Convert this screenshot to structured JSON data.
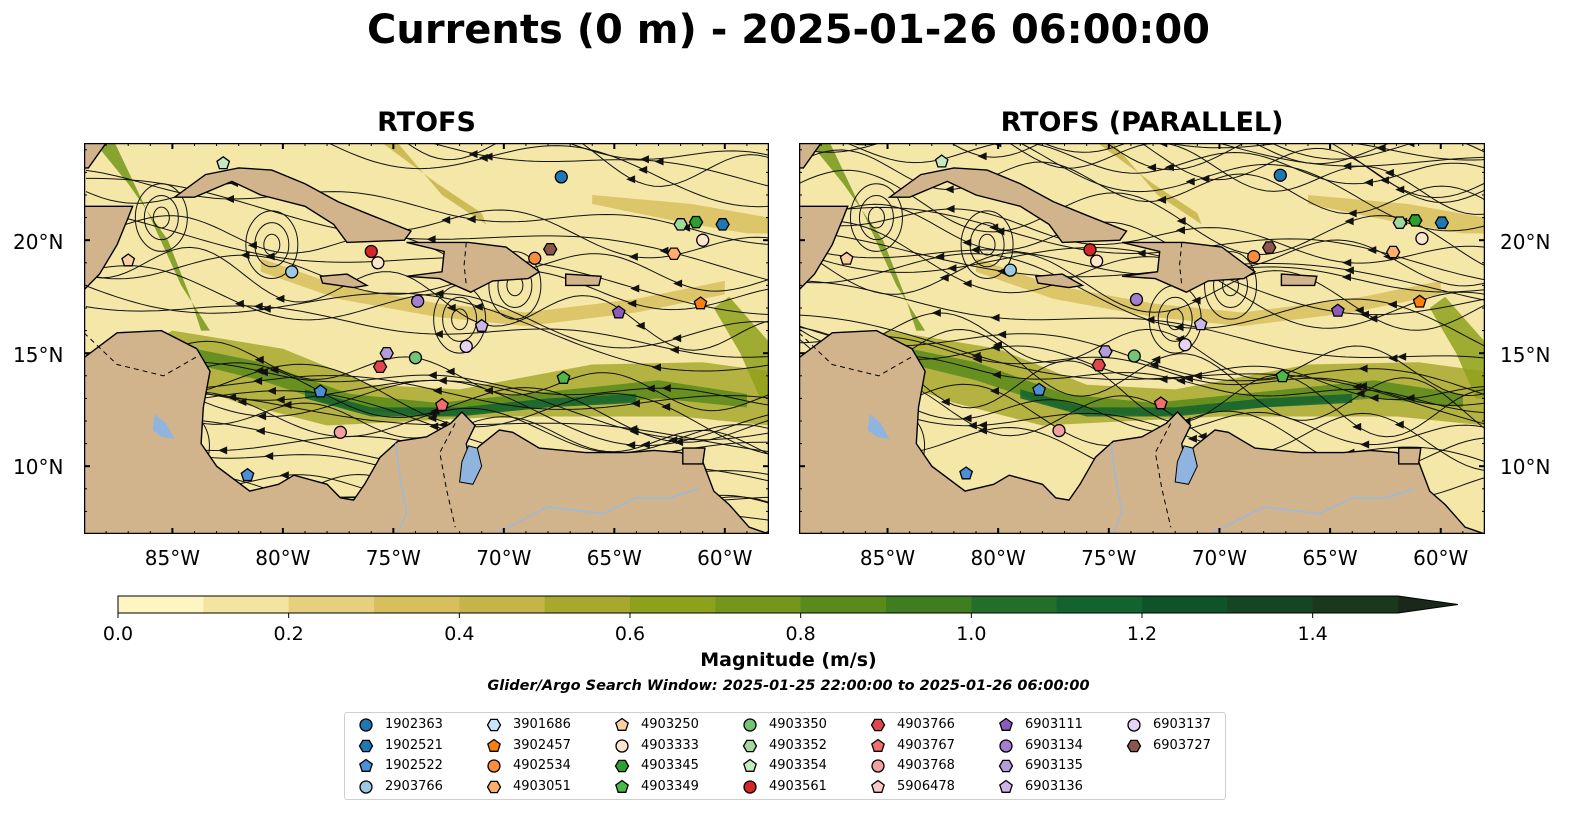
{
  "title": "Currents (0 m) - 2025-01-26 06:00:00",
  "panels": [
    {
      "title": "RTOFS"
    },
    {
      "title": "RTOFS (PARALLEL)"
    }
  ],
  "longitude_labels": [
    "85°W",
    "80°W",
    "75°W",
    "70°W",
    "65°W",
    "60°W"
  ],
  "latitude_labels": [
    "20°N",
    "15°N",
    "10°N"
  ],
  "map_extent": {
    "lon": [
      -89,
      -58
    ],
    "lat": [
      7,
      24.3
    ]
  },
  "colorbar": {
    "label": "Magnitude (m/s)",
    "ticks": [
      "0.0",
      "0.2",
      "0.4",
      "0.6",
      "0.8",
      "1.0",
      "1.2",
      "1.4"
    ],
    "range": [
      0,
      1.5
    ],
    "extend": "max",
    "colors": [
      "#fdf6c3",
      "#f3e4a2",
      "#e6d07e",
      "#d7bf5e",
      "#c5b447",
      "#a8a82e",
      "#8ea11c",
      "#74961a",
      "#5a8a1c",
      "#3e7d20",
      "#236f2a",
      "#12632d",
      "#0f5429",
      "#154523",
      "#19381c"
    ]
  },
  "search_window": "Glider/Argo Search Window: 2025-01-25 22:00:00 to 2025-01-26 06:00:00",
  "colors": {
    "land": "#d2b48c",
    "lake": "#8fb4e0",
    "river": "#9ab9dc",
    "ocean_low": "#f4e7a8"
  },
  "legend": [
    {
      "id": "1902363",
      "marker": "circle",
      "color": "#1f77b4"
    },
    {
      "id": "1902521",
      "marker": "hexagon",
      "color": "#1f77b4"
    },
    {
      "id": "1902522",
      "marker": "pentagon",
      "color": "#4a90d9"
    },
    {
      "id": "2903766",
      "marker": "circle",
      "color": "#9ecae1"
    },
    {
      "id": "3901686",
      "marker": "hexagon",
      "color": "#c6e6fb"
    },
    {
      "id": "3902457",
      "marker": "pentagon",
      "color": "#ff7f0e"
    },
    {
      "id": "4902534",
      "marker": "circle",
      "color": "#fd8d3c"
    },
    {
      "id": "4903051",
      "marker": "hexagon",
      "color": "#fdae6b"
    },
    {
      "id": "4903250",
      "marker": "pentagon",
      "color": "#fdd0a2"
    },
    {
      "id": "4903333",
      "marker": "circle",
      "color": "#fee6ce"
    },
    {
      "id": "4903345",
      "marker": "hexagon",
      "color": "#2ca02c"
    },
    {
      "id": "4903349",
      "marker": "pentagon",
      "color": "#4cb84c"
    },
    {
      "id": "4903350",
      "marker": "circle",
      "color": "#74c476"
    },
    {
      "id": "4903352",
      "marker": "hexagon",
      "color": "#a1d99b"
    },
    {
      "id": "4903354",
      "marker": "pentagon",
      "color": "#c7e9c0"
    },
    {
      "id": "4903561",
      "marker": "circle",
      "color": "#d62728"
    },
    {
      "id": "4903766",
      "marker": "hexagon",
      "color": "#e0474c"
    },
    {
      "id": "4903767",
      "marker": "pentagon",
      "color": "#ef6f6f"
    },
    {
      "id": "4903768",
      "marker": "circle",
      "color": "#f4a0a0"
    },
    {
      "id": "5906478",
      "marker": "pentagon",
      "color": "#fbc8c8"
    },
    {
      "id": "6903111",
      "marker": "pentagon",
      "color": "#8c5bbf"
    },
    {
      "id": "6903134",
      "marker": "circle",
      "color": "#a47fd1"
    },
    {
      "id": "6903135",
      "marker": "hexagon",
      "color": "#b39ddb"
    },
    {
      "id": "6903136",
      "marker": "pentagon",
      "color": "#cdb5ea"
    },
    {
      "id": "6903137",
      "marker": "circle",
      "color": "#e6d3f5"
    },
    {
      "id": "6903727",
      "marker": "hexagon",
      "color": "#8c564b"
    }
  ],
  "floats": [
    {
      "id": "1902363",
      "lon": -67.4,
      "lat": 22.8
    },
    {
      "id": "1902521",
      "lon": -60.1,
      "lat": 20.7
    },
    {
      "id": "1902522",
      "lon": -81.6,
      "lat": 9.6
    },
    {
      "id": "2903766",
      "lon": -79.6,
      "lat": 18.6
    },
    {
      "id": "4903354",
      "lon": -82.7,
      "lat": 23.4
    },
    {
      "id": "4903250",
      "lon": -87.0,
      "lat": 19.1
    },
    {
      "id": "4903561",
      "lon": -76.0,
      "lat": 19.5
    },
    {
      "id": "4903333",
      "lon": -75.7,
      "lat": 19.0
    },
    {
      "id": "6903727",
      "lon": -67.9,
      "lat": 19.6
    },
    {
      "id": "4902534",
      "lon": -68.6,
      "lat": 19.2
    },
    {
      "id": "4903352",
      "lon": -62.0,
      "lat": 20.7
    },
    {
      "id": "4903345",
      "lon": -61.3,
      "lat": 20.8
    },
    {
      "id": "4903333",
      "lon": -61.0,
      "lat": 20.0
    },
    {
      "id": "4903051",
      "lon": -62.3,
      "lat": 19.4
    },
    {
      "id": "3902457",
      "lon": -61.1,
      "lat": 17.2
    },
    {
      "id": "6903134",
      "lon": -73.9,
      "lat": 17.3
    },
    {
      "id": "6903136",
      "lon": -71.0,
      "lat": 16.2
    },
    {
      "id": "6903111",
      "lon": -64.8,
      "lat": 16.8
    },
    {
      "id": "6903137",
      "lon": -71.7,
      "lat": 15.3
    },
    {
      "id": "4903350",
      "lon": -74.0,
      "lat": 14.8
    },
    {
      "id": "6903135",
      "lon": -75.3,
      "lat": 15.0
    },
    {
      "id": "4903766",
      "lon": -75.6,
      "lat": 14.4
    },
    {
      "id": "1902522",
      "lon": -78.3,
      "lat": 13.3
    },
    {
      "id": "4903767",
      "lon": -72.8,
      "lat": 12.7
    },
    {
      "id": "4903768",
      "lon": -77.4,
      "lat": 11.5
    },
    {
      "id": "4903349",
      "lon": -67.3,
      "lat": 13.9
    }
  ]
}
